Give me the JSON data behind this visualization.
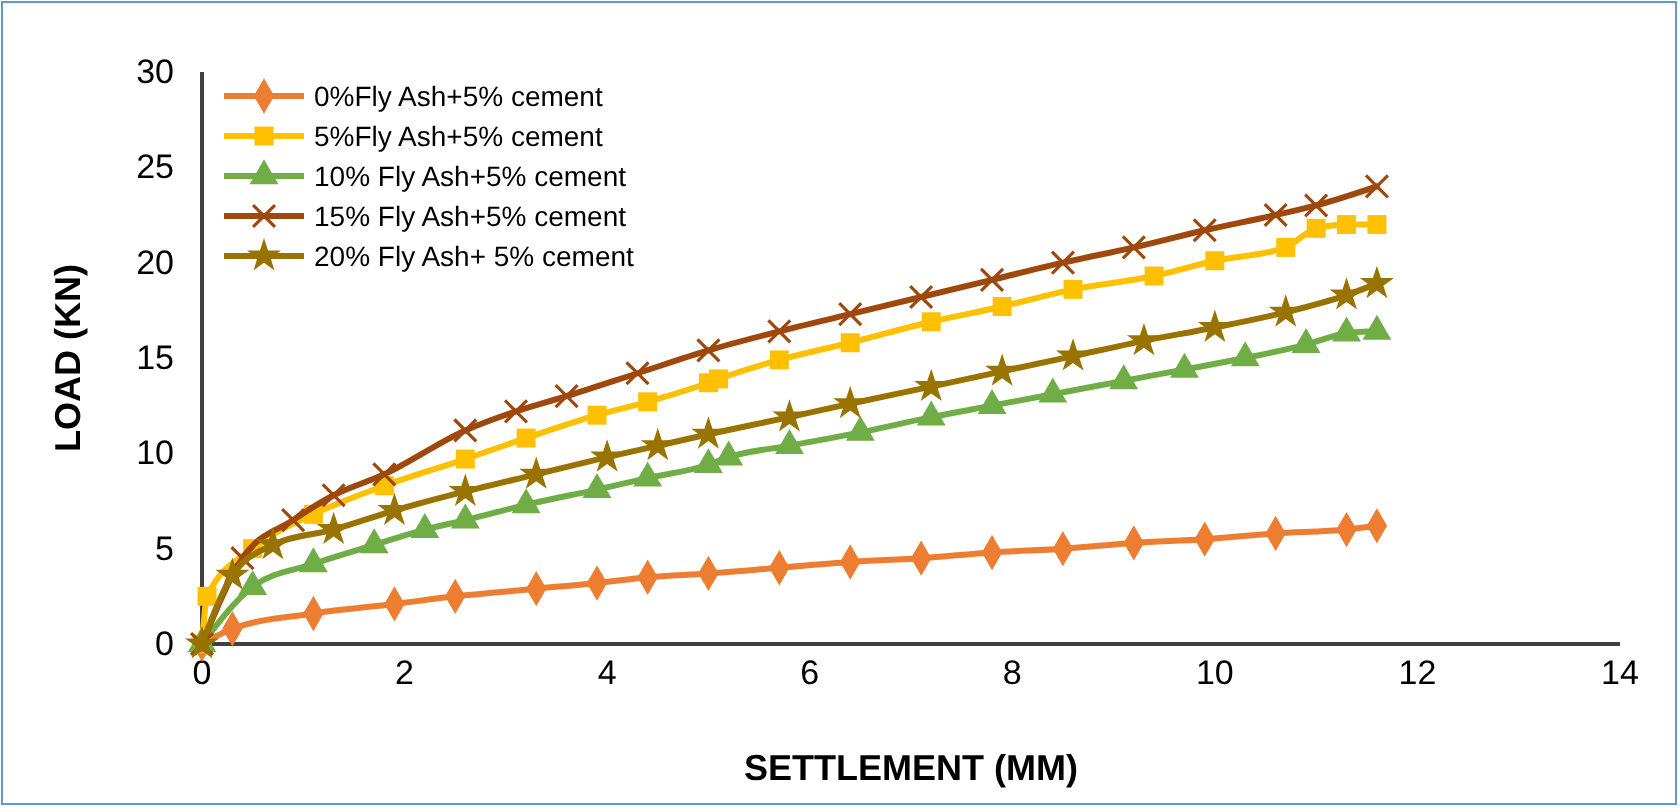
{
  "chart_data": {
    "type": "line",
    "xlabel": "SETTLEMENT (MM)",
    "ylabel": "LOAD (KN)",
    "xlim": [
      0,
      14
    ],
    "xticks": [
      0,
      2,
      4,
      6,
      8,
      10,
      12,
      14
    ],
    "ylim": [
      0,
      30
    ],
    "yticks": [
      0,
      5,
      10,
      15,
      20,
      25,
      30
    ],
    "grid": false,
    "legend": "top left",
    "series": [
      {
        "name": "0%Fly Ash+5% cement",
        "color": "#ed7d31",
        "marker": "diamond",
        "x": [
          0,
          0.3,
          1.1,
          1.9,
          2.5,
          3.3,
          3.9,
          4.4,
          5.0,
          5.7,
          6.4,
          7.1,
          7.8,
          8.5,
          9.2,
          9.9,
          10.6,
          11.3,
          11.6
        ],
        "values": [
          0,
          0.8,
          1.6,
          2.1,
          2.5,
          2.9,
          3.2,
          3.5,
          3.7,
          4.0,
          4.3,
          4.5,
          4.8,
          5.0,
          5.3,
          5.5,
          5.8,
          6.0,
          6.2
        ]
      },
      {
        "name": "5%Fly Ash+5% cement",
        "color": "#ffc000",
        "marker": "square",
        "x": [
          0,
          0.05,
          0.5,
          1.1,
          1.8,
          2.6,
          3.2,
          3.9,
          4.4,
          5.0,
          5.1,
          5.7,
          6.4,
          7.2,
          7.9,
          8.6,
          9.4,
          10.0,
          10.7,
          11.0,
          11.3,
          11.6
        ],
        "values": [
          0,
          2.5,
          5.0,
          6.8,
          8.3,
          9.7,
          10.8,
          12.0,
          12.7,
          13.7,
          13.9,
          14.9,
          15.8,
          16.9,
          17.7,
          18.6,
          19.3,
          20.1,
          20.8,
          21.8,
          22.0,
          22.0
        ]
      },
      {
        "name": "10% Fly Ash+5% cement",
        "color": "#70ad47",
        "marker": "triangle",
        "x": [
          0,
          0.5,
          1.1,
          1.7,
          2.2,
          2.6,
          3.2,
          3.9,
          4.4,
          5.0,
          5.2,
          5.8,
          6.5,
          7.2,
          7.8,
          8.4,
          9.1,
          9.7,
          10.3,
          10.9,
          11.3,
          11.6
        ],
        "values": [
          0,
          3.0,
          4.2,
          5.2,
          6.0,
          6.5,
          7.3,
          8.1,
          8.7,
          9.4,
          9.8,
          10.4,
          11.1,
          11.9,
          12.5,
          13.1,
          13.8,
          14.4,
          15.0,
          15.7,
          16.3,
          16.4
        ]
      },
      {
        "name": "15% Fly Ash+5% cement",
        "color": "#9e480e",
        "marker": "cross",
        "x": [
          0,
          0.4,
          0.9,
          1.3,
          1.8,
          2.6,
          3.1,
          3.6,
          4.3,
          5.0,
          5.7,
          6.4,
          7.1,
          7.8,
          8.5,
          9.2,
          9.9,
          10.6,
          11.0,
          11.6
        ],
        "values": [
          0,
          4.5,
          6.5,
          7.8,
          8.9,
          11.2,
          12.2,
          13.0,
          14.2,
          15.4,
          16.4,
          17.3,
          18.2,
          19.1,
          20.0,
          20.8,
          21.7,
          22.5,
          23.0,
          24.0
        ]
      },
      {
        "name": "20% Fly Ash+ 5% cement",
        "color": "#997300",
        "marker": "star",
        "x": [
          0,
          0.3,
          0.7,
          1.3,
          1.9,
          2.6,
          3.3,
          4.0,
          4.5,
          5.0,
          5.8,
          6.4,
          7.2,
          7.9,
          8.6,
          9.3,
          10.0,
          10.7,
          11.3,
          11.6
        ],
        "values": [
          0,
          3.6,
          5.2,
          6.0,
          7.0,
          8.0,
          8.9,
          9.8,
          10.4,
          11.0,
          11.9,
          12.6,
          13.5,
          14.3,
          15.1,
          15.9,
          16.6,
          17.4,
          18.3,
          18.9
        ]
      }
    ]
  }
}
